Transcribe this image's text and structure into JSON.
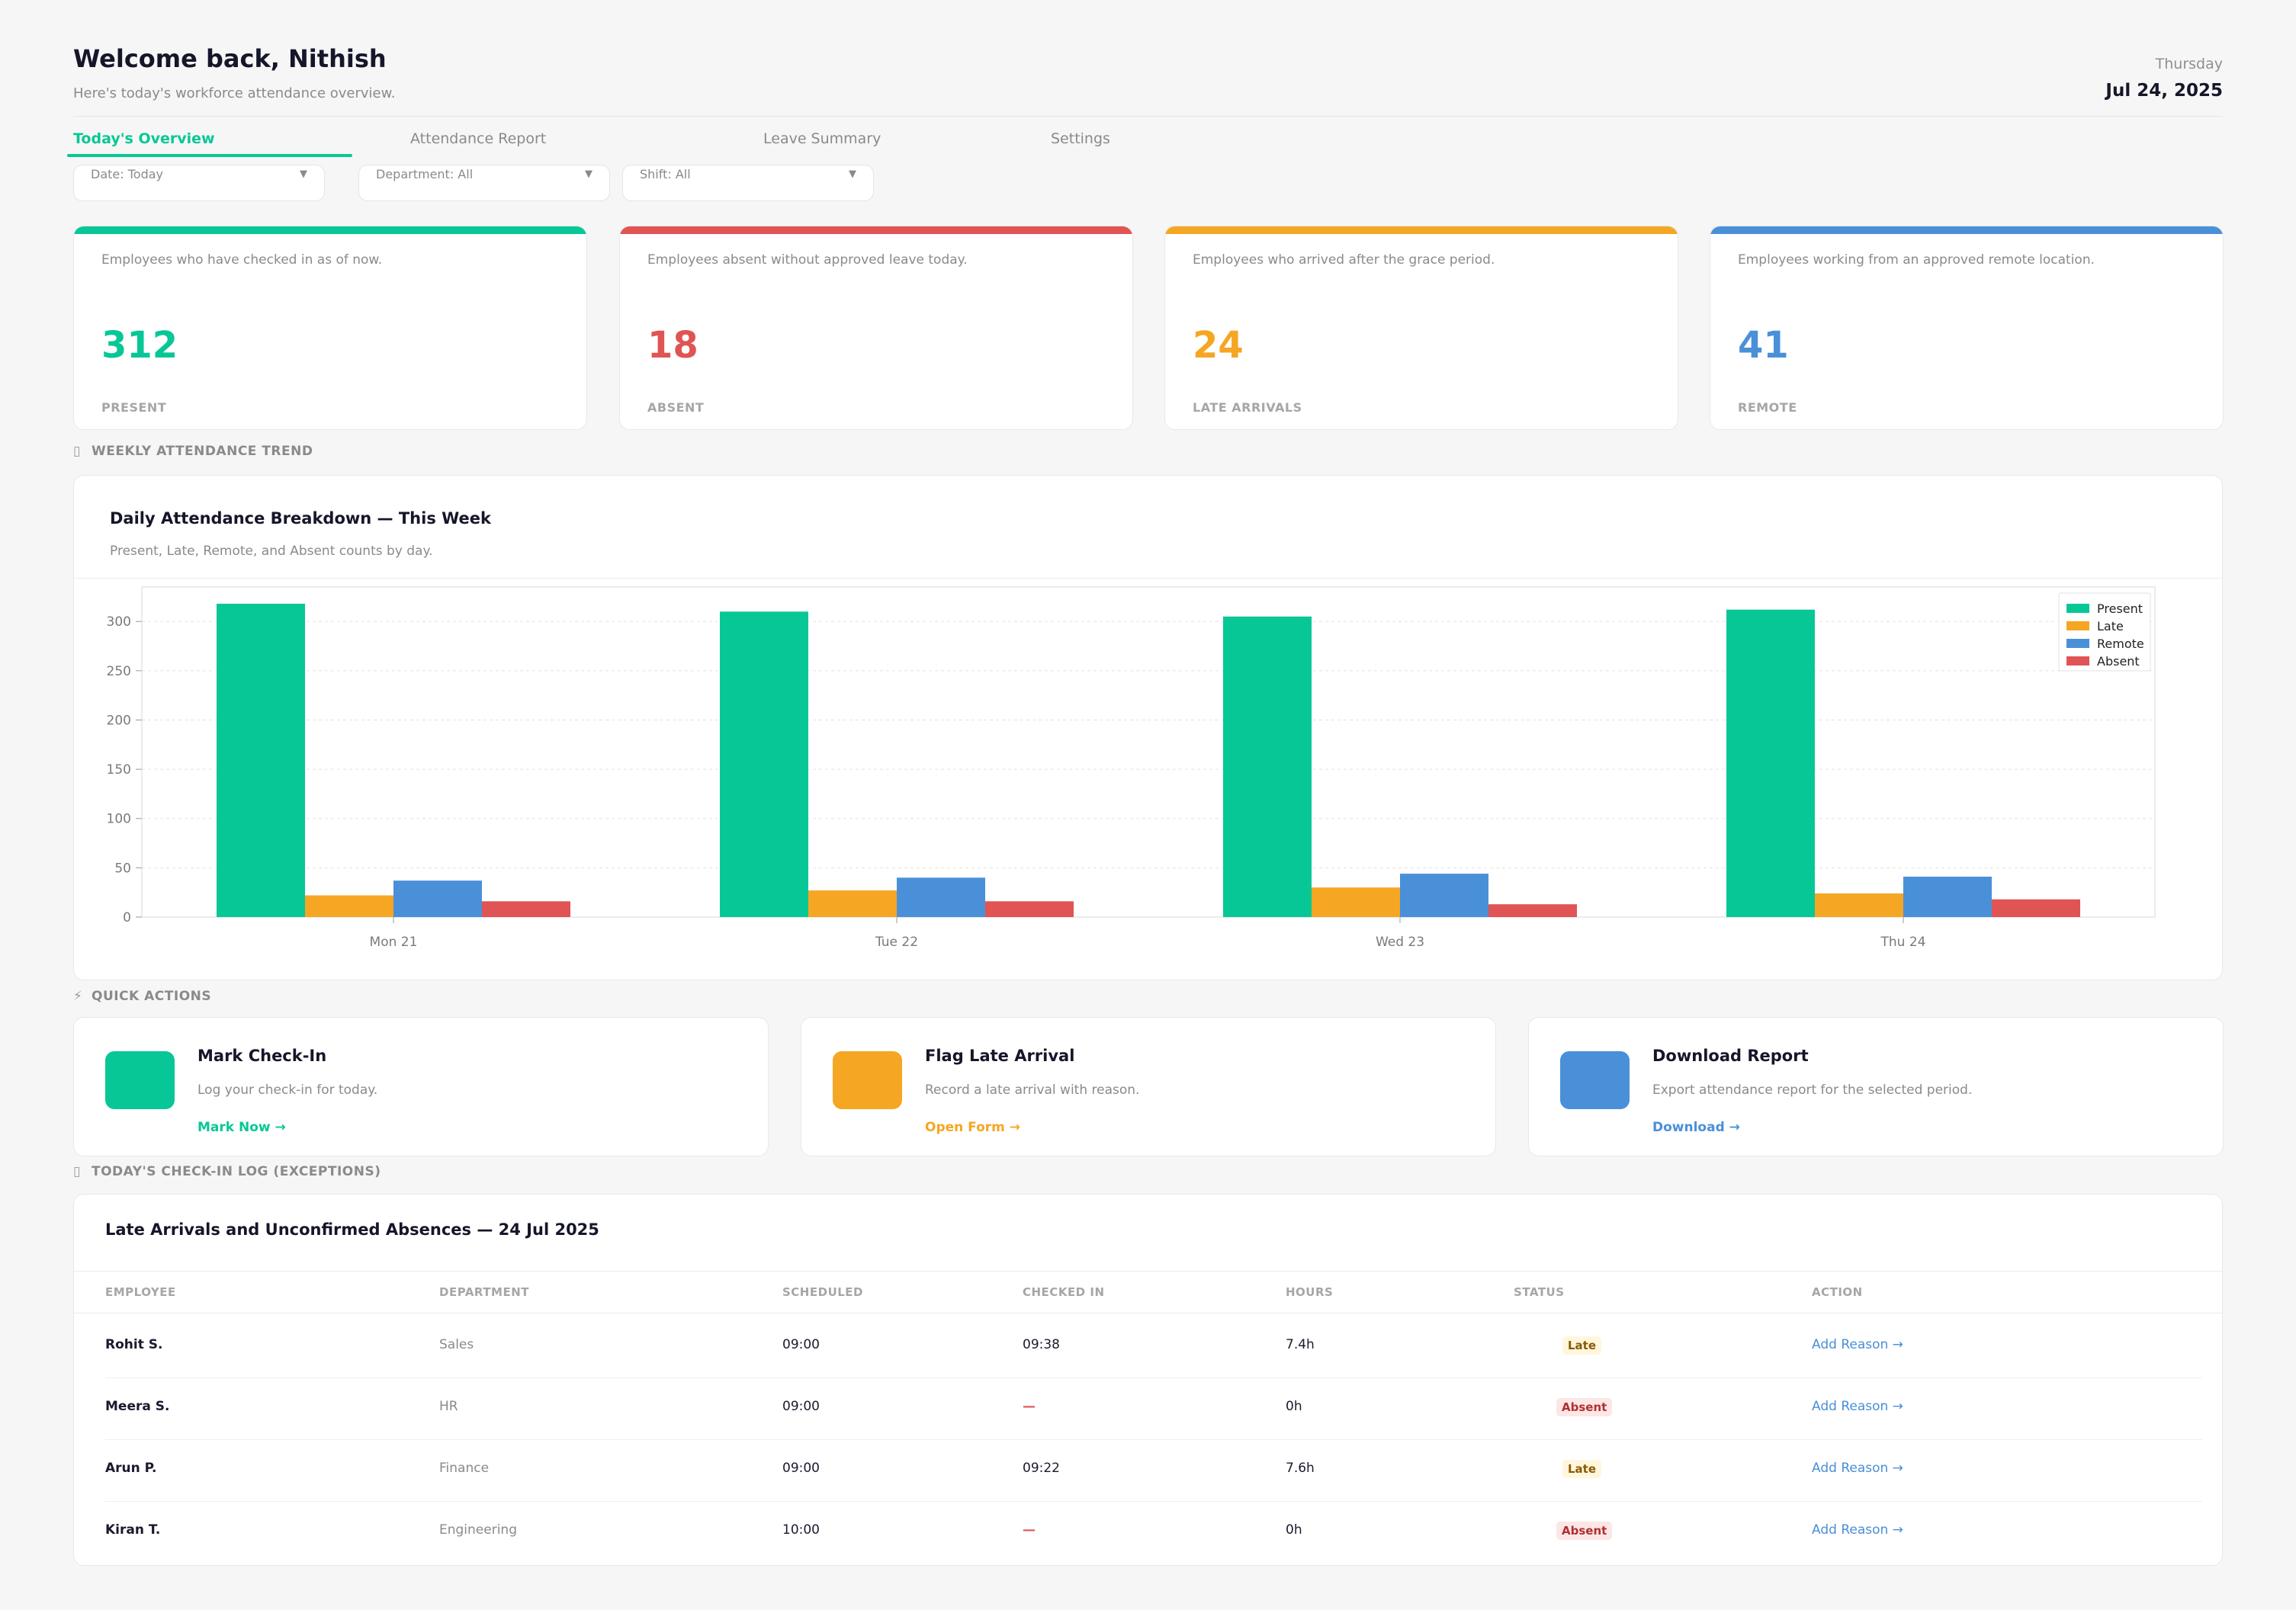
{
  "header": {
    "welcome": "Welcome back, Nithish",
    "subtitle": "Here's today's workforce attendance overview.",
    "day": "Thursday",
    "date": "Jul 24, 2025"
  },
  "tabs": [
    {
      "label": "Today's Overview",
      "active": true
    },
    {
      "label": "Attendance Report"
    },
    {
      "label": "Leave Summary"
    },
    {
      "label": "Settings"
    }
  ],
  "filters": [
    {
      "label": "Date: Today"
    },
    {
      "label": "Department: All"
    },
    {
      "label": "Shift: All"
    }
  ],
  "kpis": [
    {
      "desc": "Employees who have checked in as of now.",
      "value": "312",
      "caption": "PRESENT",
      "color": "#08c796"
    },
    {
      "desc": "Employees absent without approved leave today.",
      "value": "18",
      "caption": "ABSENT",
      "color": "#e05454"
    },
    {
      "desc": "Employees who arrived after the grace period.",
      "value": "24",
      "caption": "LATE ARRIVALS",
      "color": "#f5a623"
    },
    {
      "desc": "Employees working from an approved remote location.",
      "value": "41",
      "caption": "REMOTE",
      "color": "#4a90d9"
    }
  ],
  "sections": {
    "trend": "WEEKLY ATTENDANCE TREND",
    "quick": "QUICK ACTIONS",
    "log": "TODAY'S CHECK-IN LOG (EXCEPTIONS)"
  },
  "chart": {
    "title": "Daily Attendance Breakdown — This Week",
    "subtitle": "Present, Late, Remote, and Absent counts by day."
  },
  "chart_data": {
    "type": "bar",
    "categories": [
      "Mon 21",
      "Tue 22",
      "Wed 23",
      "Thu 24"
    ],
    "series": [
      {
        "name": "Present",
        "values": [
          318,
          310,
          305,
          312
        ],
        "color": "#08c796"
      },
      {
        "name": "Late",
        "values": [
          22,
          27,
          30,
          24
        ],
        "color": "#f5a623"
      },
      {
        "name": "Remote",
        "values": [
          37,
          40,
          44,
          41
        ],
        "color": "#4a90d9"
      },
      {
        "name": "Absent",
        "values": [
          16,
          16,
          13,
          18
        ],
        "color": "#e05454"
      }
    ],
    "yticks": [
      0,
      50,
      100,
      150,
      200,
      250,
      300
    ],
    "ylim": [
      0,
      335
    ],
    "grid": true,
    "legend": "top-right"
  },
  "quick_actions": [
    {
      "title": "Mark Check-In",
      "desc": "Log your check-in for today.",
      "link": "Mark Now →",
      "color": "#08c796"
    },
    {
      "title": "Flag Late Arrival",
      "desc": "Record a late arrival with reason.",
      "link": "Open Form →",
      "color": "#f5a623"
    },
    {
      "title": "Download Report",
      "desc": "Export attendance report for the selected period.",
      "link": "Download →",
      "color": "#4a90d9"
    }
  ],
  "log": {
    "title": "Late Arrivals and Unconfirmed Absences — 24 Jul 2025",
    "columns": [
      "EMPLOYEE",
      "DEPARTMENT",
      "SCHEDULED",
      "CHECKED IN",
      "HOURS",
      "STATUS",
      "ACTION"
    ],
    "rows": [
      {
        "employee": "Rohit S.",
        "department": "Sales",
        "scheduled": "09:00",
        "checked_in": "09:38",
        "hours": "7.4h",
        "status": "Late",
        "action": "Add Reason →"
      },
      {
        "employee": "Meera S.",
        "department": "HR",
        "scheduled": "09:00",
        "checked_in": "—",
        "hours": "0h",
        "status": "Absent",
        "action": "Add Reason →"
      },
      {
        "employee": "Arun P.",
        "department": "Finance",
        "scheduled": "09:00",
        "checked_in": "09:22",
        "hours": "7.6h",
        "status": "Late",
        "action": "Add Reason →"
      },
      {
        "employee": "Kiran T.",
        "department": "Engineering",
        "scheduled": "10:00",
        "checked_in": "—",
        "hours": "0h",
        "status": "Absent",
        "action": "Add Reason →"
      }
    ]
  }
}
